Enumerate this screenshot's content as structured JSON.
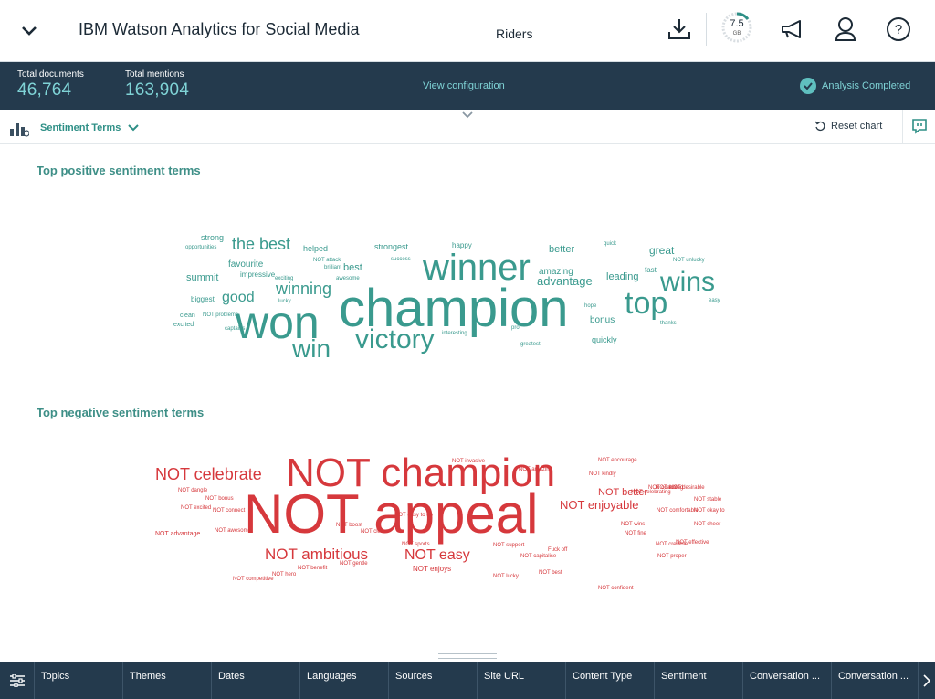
{
  "header": {
    "app_title": "IBM Watson Analytics for Social Media",
    "dataset_name": "Riders",
    "storage": {
      "value": "7.5",
      "unit": "GB"
    },
    "icons": [
      "chevron-down-icon",
      "download-icon",
      "megaphone-icon",
      "user-icon",
      "help-icon"
    ]
  },
  "summary": {
    "total_documents_label": "Total documents",
    "total_documents_value": "46,764",
    "total_mentions_label": "Total mentions",
    "total_mentions_value": "163,904",
    "view_configuration": "View configuration",
    "status": "Analysis Completed"
  },
  "toolbar": {
    "chart_select": "Sentiment Terms",
    "reset_chart": "Reset chart"
  },
  "positive": {
    "title": "Top positive sentiment terms",
    "color": "#3a9a8e",
    "terms": [
      {
        "text": "champion"
      },
      {
        "text": "won"
      },
      {
        "text": "winner"
      },
      {
        "text": "victory"
      },
      {
        "text": "win"
      },
      {
        "text": "top"
      },
      {
        "text": "wins"
      },
      {
        "text": "the best"
      },
      {
        "text": "winning"
      },
      {
        "text": "good"
      },
      {
        "text": "advantage"
      },
      {
        "text": "best"
      },
      {
        "text": "favourite"
      },
      {
        "text": "summit"
      },
      {
        "text": "great"
      },
      {
        "text": "better"
      },
      {
        "text": "leading"
      },
      {
        "text": "bonus"
      },
      {
        "text": "amazing"
      },
      {
        "text": "strongest"
      },
      {
        "text": "strong"
      },
      {
        "text": "biggest"
      },
      {
        "text": "helped"
      },
      {
        "text": "quickly"
      },
      {
        "text": "impressive"
      },
      {
        "text": "happy"
      },
      {
        "text": "fast"
      },
      {
        "text": "clean"
      },
      {
        "text": "excited"
      },
      {
        "text": "NOT problems"
      },
      {
        "text": "exciting"
      },
      {
        "text": "awesome"
      },
      {
        "text": "brilliant"
      },
      {
        "text": "success"
      },
      {
        "text": "NOT attack"
      },
      {
        "text": "interesting"
      },
      {
        "text": "greatest"
      },
      {
        "text": "thanks"
      },
      {
        "text": "quick"
      },
      {
        "text": "NOT unlucky"
      },
      {
        "text": "easy"
      },
      {
        "text": "captains"
      },
      {
        "text": "opportunities"
      },
      {
        "text": "hope"
      },
      {
        "text": "lucky"
      },
      {
        "text": "pro"
      },
      {
        "text": "NOT miss"
      },
      {
        "text": "important"
      }
    ]
  },
  "negative": {
    "title": "Top negative sentiment terms",
    "color": "#d6383c",
    "terms": [
      {
        "text": "NOT appeal"
      },
      {
        "text": "NOT champion"
      },
      {
        "text": "NOT celebrate"
      },
      {
        "text": "NOT ambitious"
      },
      {
        "text": "NOT easy"
      },
      {
        "text": "NOT enjoyable"
      },
      {
        "text": "NOT better"
      },
      {
        "text": "NOT enjoys"
      },
      {
        "text": "NOT okay to"
      },
      {
        "text": "NOT advantage"
      },
      {
        "text": "NOT bonus"
      },
      {
        "text": "NOT excited"
      },
      {
        "text": "NOT dangle"
      },
      {
        "text": "NOT connect"
      },
      {
        "text": "NOT best"
      },
      {
        "text": "NOT capitalise"
      },
      {
        "text": "NOT competitive"
      },
      {
        "text": "NOT lucky"
      },
      {
        "text": "NOT benefit"
      },
      {
        "text": "NOT support"
      },
      {
        "text": "NOT clean"
      },
      {
        "text": "NOT boost"
      },
      {
        "text": "NOT celebrating"
      },
      {
        "text": "NOT coaching"
      },
      {
        "text": "NOT confident"
      },
      {
        "text": "NOT suited"
      },
      {
        "text": "NOT fine"
      },
      {
        "text": "NOT cheer"
      },
      {
        "text": "NOT stable"
      },
      {
        "text": "NOT wins"
      },
      {
        "text": "NOT encourage"
      },
      {
        "text": "NOT gentle"
      },
      {
        "text": "NOT hero"
      },
      {
        "text": "NOT effective"
      },
      {
        "text": "NOT awesome"
      },
      {
        "text": "NOT desirable"
      },
      {
        "text": "NOT amazing"
      },
      {
        "text": "Fuck off"
      },
      {
        "text": "NOT comfortable"
      },
      {
        "text": "NOT sports"
      },
      {
        "text": "NOT invasive"
      },
      {
        "text": "NOT proper"
      },
      {
        "text": "NOT easy to do"
      },
      {
        "text": "NOT credible"
      },
      {
        "text": "NOT kindly"
      }
    ]
  },
  "filters": {
    "tabs": [
      "Topics",
      "Themes",
      "Dates",
      "Languages",
      "Sources",
      "Site URL",
      "Content Type",
      "Sentiment",
      "Conversation ...",
      "Conversation ..."
    ]
  }
}
